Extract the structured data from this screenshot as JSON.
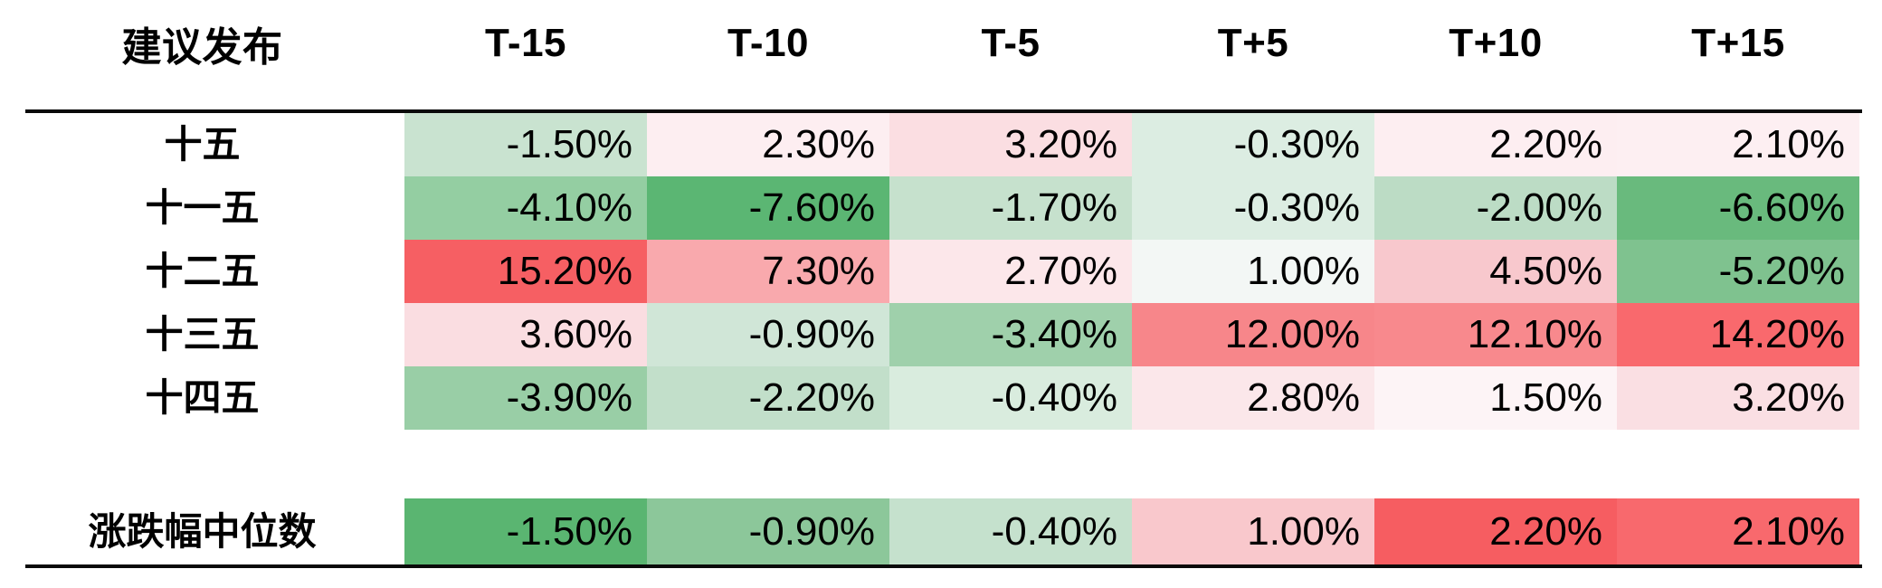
{
  "table": {
    "corner_label": "建议发布",
    "columns": [
      "T-15",
      "T-10",
      "T-5",
      "T+5",
      "T+10",
      "T+15"
    ],
    "rows": [
      {
        "label": "十五",
        "cells": [
          {
            "text": "-1.50%",
            "bg": "#c9e3d0"
          },
          {
            "text": "2.30%",
            "bg": "#fdeef1"
          },
          {
            "text": "3.20%",
            "bg": "#fbdee2"
          },
          {
            "text": "-0.30%",
            "bg": "#dcede2"
          },
          {
            "text": "2.20%",
            "bg": "#fdeef1"
          },
          {
            "text": "2.10%",
            "bg": "#fdeff2"
          }
        ]
      },
      {
        "label": "十一五",
        "cells": [
          {
            "text": "-4.10%",
            "bg": "#94cea2"
          },
          {
            "text": "-7.60%",
            "bg": "#5bb673"
          },
          {
            "text": "-1.70%",
            "bg": "#c6e1cd"
          },
          {
            "text": "-0.30%",
            "bg": "#dcede2"
          },
          {
            "text": "-2.00%",
            "bg": "#bcdcc5"
          },
          {
            "text": "-6.60%",
            "bg": "#69ba7d"
          }
        ]
      },
      {
        "label": "十二五",
        "cells": [
          {
            "text": "15.20%",
            "bg": "#f65f63"
          },
          {
            "text": "7.30%",
            "bg": "#f9a9ad"
          },
          {
            "text": "2.70%",
            "bg": "#fce7ea"
          },
          {
            "text": "1.00%",
            "bg": "#f3f7f5"
          },
          {
            "text": "4.50%",
            "bg": "#f8c8cd"
          },
          {
            "text": "-5.20%",
            "bg": "#7fc28f"
          }
        ]
      },
      {
        "label": "十三五",
        "cells": [
          {
            "text": "3.60%",
            "bg": "#fadde1"
          },
          {
            "text": "-0.90%",
            "bg": "#d0e6d7"
          },
          {
            "text": "-3.40%",
            "bg": "#9fd0ab"
          },
          {
            "text": "12.00%",
            "bg": "#f7868a"
          },
          {
            "text": "12.10%",
            "bg": "#f8898d"
          },
          {
            "text": "14.20%",
            "bg": "#f9696d"
          }
        ]
      },
      {
        "label": "十四五",
        "cells": [
          {
            "text": "-3.90%",
            "bg": "#99cea6"
          },
          {
            "text": "-2.20%",
            "bg": "#c2dfca"
          },
          {
            "text": "-0.40%",
            "bg": "#d9ecde"
          },
          {
            "text": "2.80%",
            "bg": "#fbe7ea"
          },
          {
            "text": "1.50%",
            "bg": "#fdf4f6"
          },
          {
            "text": "3.20%",
            "bg": "#fadfe3"
          }
        ]
      }
    ],
    "summary_row": {
      "label": "涨跌幅中位数",
      "cells": [
        {
          "text": "-1.50%",
          "bg": "#5ab571"
        },
        {
          "text": "-0.90%",
          "bg": "#8cc79a"
        },
        {
          "text": "-0.40%",
          "bg": "#c5e1cd"
        },
        {
          "text": "1.00%",
          "bg": "#f9c8cc"
        },
        {
          "text": "2.20%",
          "bg": "#f65d61"
        },
        {
          "text": "2.10%",
          "bg": "#f8696d"
        }
      ]
    }
  },
  "chart_data": {
    "type": "heatmap",
    "title": "",
    "corner_label": "建议发布",
    "columns": [
      "T-15",
      "T-10",
      "T-5",
      "T+5",
      "T+10",
      "T+15"
    ],
    "rows": [
      "十五",
      "十一五",
      "十二五",
      "十三五",
      "十四五"
    ],
    "values_pct": [
      [
        -1.5,
        2.3,
        3.2,
        -0.3,
        2.2,
        2.1
      ],
      [
        -4.1,
        -7.6,
        -1.7,
        -0.3,
        -2.0,
        -6.6
      ],
      [
        15.2,
        7.3,
        2.7,
        1.0,
        4.5,
        -5.2
      ],
      [
        3.6,
        -0.9,
        -3.4,
        12.0,
        12.1,
        14.2
      ],
      [
        -3.9,
        -2.2,
        -0.4,
        2.8,
        1.5,
        3.2
      ]
    ],
    "summary": {
      "label": "涨跌幅中位数",
      "values_pct": [
        -1.5,
        -0.9,
        -0.4,
        1.0,
        2.2,
        2.1
      ]
    },
    "layout_hints": {
      "value_format": "0.00%",
      "negative_color": "#5ab571",
      "positive_color": "#f65f63",
      "neutral_color": "#ffffff",
      "rule_color": "#0a0a0a"
    }
  }
}
